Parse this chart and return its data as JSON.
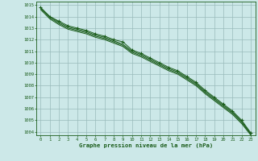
{
  "bg_color": "#cce8e8",
  "grid_color": "#99bbbb",
  "line_color": "#1a5c1a",
  "xlim": [
    0,
    23
  ],
  "ylim": [
    1004,
    1015
  ],
  "xlabel": "Graphe pression niveau de la mer (hPa)",
  "series": [
    [
      1014.8,
      1014.0,
      1013.6,
      1013.2,
      1013.0,
      1012.8,
      1012.5,
      1012.3,
      1012.0,
      1011.8,
      1011.1,
      1010.8,
      1010.4,
      1010.0,
      1009.6,
      1009.3,
      1008.8,
      1008.3,
      1007.6,
      1007.0,
      1006.4,
      1005.8,
      1005.0,
      1003.9
    ],
    [
      1014.7,
      1013.9,
      1013.4,
      1013.0,
      1012.8,
      1012.6,
      1012.3,
      1012.1,
      1011.8,
      1011.5,
      1010.9,
      1010.6,
      1010.2,
      1009.8,
      1009.4,
      1009.1,
      1008.6,
      1008.1,
      1007.4,
      1006.8,
      1006.2,
      1005.6,
      1004.8,
      1003.8
    ],
    [
      1014.7,
      1014.0,
      1013.5,
      1013.1,
      1012.9,
      1012.7,
      1012.4,
      1012.2,
      1011.9,
      1011.6,
      1011.0,
      1010.7,
      1010.3,
      1009.9,
      1009.5,
      1009.2,
      1008.7,
      1008.2,
      1007.5,
      1006.9,
      1006.3,
      1005.7,
      1004.9,
      1003.8
    ],
    [
      1014.6,
      1013.8,
      1013.3,
      1012.9,
      1012.7,
      1012.5,
      1012.2,
      1012.0,
      1011.7,
      1011.4,
      1010.8,
      1010.5,
      1010.1,
      1009.7,
      1009.3,
      1009.0,
      1008.5,
      1008.0,
      1007.3,
      1006.7,
      1006.1,
      1005.5,
      1004.7,
      1003.7
    ]
  ]
}
